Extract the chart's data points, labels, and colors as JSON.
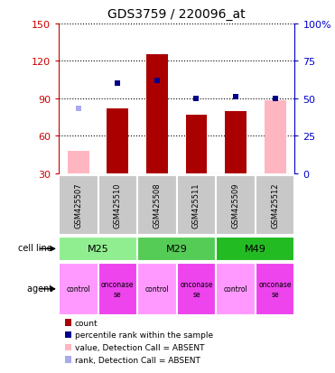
{
  "title": "GDS3759 / 220096_at",
  "samples": [
    "GSM425507",
    "GSM425510",
    "GSM425508",
    "GSM425511",
    "GSM425509",
    "GSM425512"
  ],
  "cell_lines": [
    {
      "label": "M25",
      "span": [
        0,
        2
      ],
      "color": "#90EE90"
    },
    {
      "label": "M29",
      "span": [
        2,
        4
      ],
      "color": "#55CC55"
    },
    {
      "label": "M49",
      "span": [
        4,
        6
      ],
      "color": "#22BB22"
    }
  ],
  "agents": [
    "control",
    "onconase\nse",
    "control",
    "onconase\nse",
    "control",
    "onconase\nse"
  ],
  "agent_color_control": "#FF99FF",
  "agent_color_onconase": "#EE44EE",
  "count_values": [
    null,
    82,
    125,
    77,
    80,
    null
  ],
  "count_absent": [
    48,
    null,
    null,
    null,
    null,
    88
  ],
  "rank_values_right": [
    null,
    60,
    62,
    50,
    51,
    50
  ],
  "rank_absent_right": [
    43,
    null,
    null,
    null,
    null,
    null
  ],
  "left_ylim": [
    30,
    150
  ],
  "left_yticks": [
    30,
    60,
    90,
    120,
    150
  ],
  "right_ylim": [
    0,
    100
  ],
  "right_yticks": [
    0,
    25,
    50,
    75,
    100
  ],
  "right_yticklabels": [
    "0",
    "25",
    "50",
    "75",
    "100%"
  ],
  "bar_color_present": "#AA0000",
  "bar_color_absent": "#FFB6C1",
  "rank_color_present": "#00008B",
  "rank_color_absent": "#AAAAEE",
  "sample_bg_color": "#C8C8C8",
  "left_axis_color": "#CC0000",
  "right_axis_color": "#0000CC",
  "legend_items": [
    {
      "label": "count",
      "color": "#AA0000"
    },
    {
      "label": "percentile rank within the sample",
      "color": "#00008B"
    },
    {
      "label": "value, Detection Call = ABSENT",
      "color": "#FFB6C1"
    },
    {
      "label": "rank, Detection Call = ABSENT",
      "color": "#AAAAEE"
    }
  ]
}
